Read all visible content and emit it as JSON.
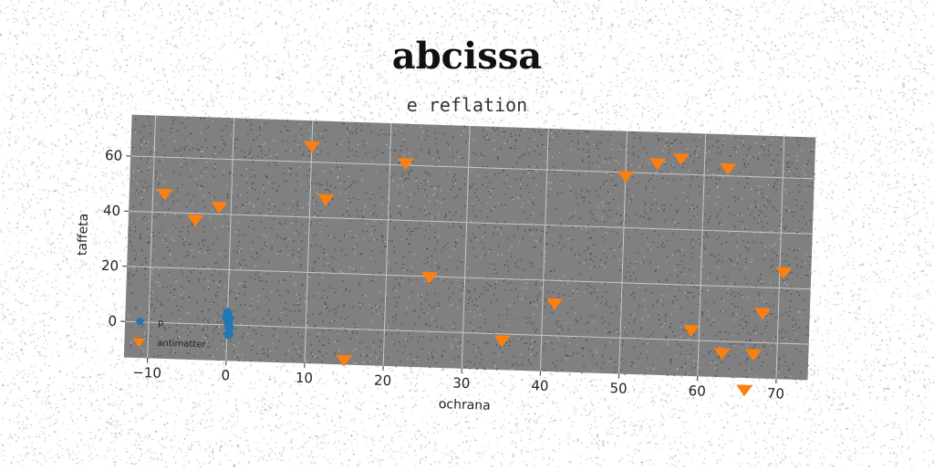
{
  "chart_data": {
    "type": "scatter",
    "title": "abcissa",
    "subtitle": "e reflation",
    "xlabel": "ochrana",
    "ylabel": "taffeta",
    "xlim": [
      -13,
      74
    ],
    "ylim": [
      -13,
      75
    ],
    "xticks": [
      -10,
      0,
      10,
      20,
      30,
      40,
      50,
      60,
      70
    ],
    "yticks": [
      0,
      20,
      40,
      60
    ],
    "grid": true,
    "legend_position": "lower-left",
    "background": "#808080",
    "series": [
      {
        "name": "p",
        "marker": "circle",
        "color": "#1f77b4",
        "points": [
          {
            "x": 0.0,
            "y": 4.5
          },
          {
            "x": 0.2,
            "y": 2.5
          },
          {
            "x": 0.1,
            "y": 0.5
          },
          {
            "x": 0.3,
            "y": -1.0
          },
          {
            "x": 0.2,
            "y": -3.5
          },
          {
            "x": -0.1,
            "y": 3.0
          }
        ]
      },
      {
        "name": "antimatter",
        "marker": "triangle-down",
        "color": "#ff7f0e",
        "points": [
          {
            "x": -8.5,
            "y": 47
          },
          {
            "x": -4.5,
            "y": 38
          },
          {
            "x": -1.5,
            "y": 43
          },
          {
            "x": 10,
            "y": 66
          },
          {
            "x": 12,
            "y": 47
          },
          {
            "x": 15,
            "y": -11
          },
          {
            "x": 22,
            "y": 61
          },
          {
            "x": 25.5,
            "y": 20
          },
          {
            "x": 35,
            "y": -2
          },
          {
            "x": 41.5,
            "y": 12
          },
          {
            "x": 50,
            "y": 59
          },
          {
            "x": 54,
            "y": 64
          },
          {
            "x": 57,
            "y": 66
          },
          {
            "x": 59,
            "y": 4
          },
          {
            "x": 63,
            "y": 63
          },
          {
            "x": 63,
            "y": -4
          },
          {
            "x": 66,
            "y": -17
          },
          {
            "x": 67,
            "y": -4
          },
          {
            "x": 68,
            "y": 11
          },
          {
            "x": 70.5,
            "y": 26
          }
        ]
      }
    ]
  }
}
